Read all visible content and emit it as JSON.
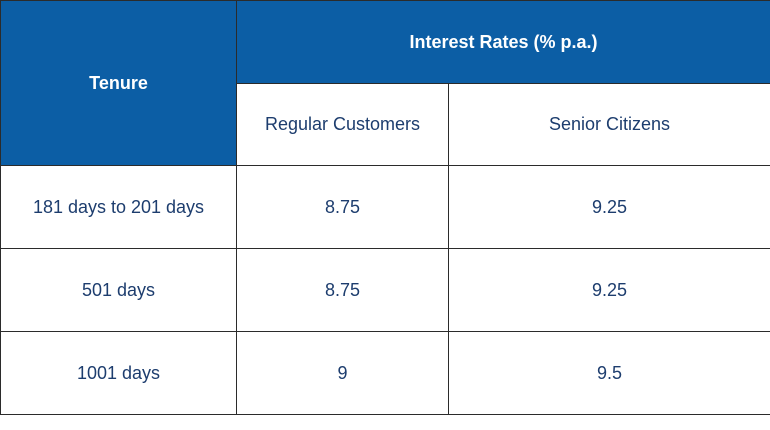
{
  "table": {
    "header": {
      "tenure": "Tenure",
      "interest_rates": "Interest Rates (% p.a.)",
      "columns": [
        "Regular Customers",
        "Senior Citizens"
      ]
    },
    "rows": [
      [
        "181 days to 201 days",
        "8.75",
        "9.25"
      ],
      [
        "501 days",
        "8.75",
        "9.25"
      ],
      [
        "1001 days",
        "9",
        "9.5"
      ]
    ]
  }
}
